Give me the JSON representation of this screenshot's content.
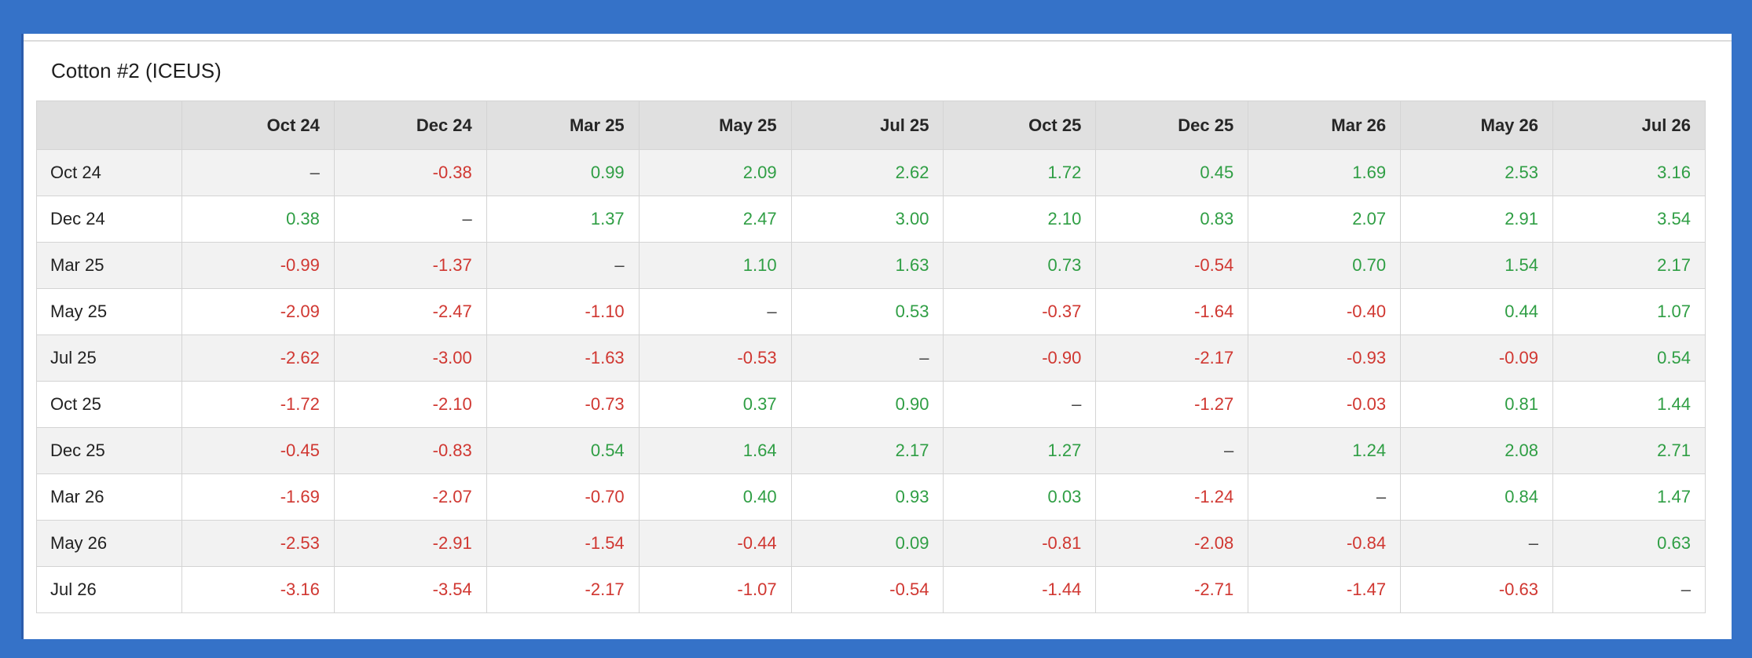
{
  "colors": {
    "frame_blue": "#3572c8",
    "panel_edge_blue": "#2b5cab",
    "divider_gray": "#dcdcdc",
    "header_bg": "#e0e0e0",
    "alt_row_bg": "#f2f2f2",
    "grid_line": "#d4d4d4",
    "positive_green": "#2f9e44",
    "negative_red": "#d03731",
    "dash_gray": "#444444",
    "text_dark": "#222222"
  },
  "chart_data": {
    "type": "table",
    "title": "Cotton #2 (ICEUS)",
    "corner_label": "",
    "columns": [
      "Oct 24",
      "Dec 24",
      "Mar 25",
      "May 25",
      "Jul 25",
      "Oct 25",
      "Dec 25",
      "Mar 26",
      "May 26",
      "Jul 26"
    ],
    "rows": [
      {
        "label": "Oct 24",
        "values": [
          "–",
          "-0.38",
          "0.99",
          "2.09",
          "2.62",
          "1.72",
          "0.45",
          "1.69",
          "2.53",
          "3.16"
        ]
      },
      {
        "label": "Dec 24",
        "values": [
          "0.38",
          "–",
          "1.37",
          "2.47",
          "3.00",
          "2.10",
          "0.83",
          "2.07",
          "2.91",
          "3.54"
        ]
      },
      {
        "label": "Mar 25",
        "values": [
          "-0.99",
          "-1.37",
          "–",
          "1.10",
          "1.63",
          "0.73",
          "-0.54",
          "0.70",
          "1.54",
          "2.17"
        ]
      },
      {
        "label": "May 25",
        "values": [
          "-2.09",
          "-2.47",
          "-1.10",
          "–",
          "0.53",
          "-0.37",
          "-1.64",
          "-0.40",
          "0.44",
          "1.07"
        ]
      },
      {
        "label": "Jul 25",
        "values": [
          "-2.62",
          "-3.00",
          "-1.63",
          "-0.53",
          "–",
          "-0.90",
          "-2.17",
          "-0.93",
          "-0.09",
          "0.54"
        ]
      },
      {
        "label": "Oct 25",
        "values": [
          "-1.72",
          "-2.10",
          "-0.73",
          "0.37",
          "0.90",
          "–",
          "-1.27",
          "-0.03",
          "0.81",
          "1.44"
        ]
      },
      {
        "label": "Dec 25",
        "values": [
          "-0.45",
          "-0.83",
          "0.54",
          "1.64",
          "2.17",
          "1.27",
          "–",
          "1.24",
          "2.08",
          "2.71"
        ]
      },
      {
        "label": "Mar 26",
        "values": [
          "-1.69",
          "-2.07",
          "-0.70",
          "0.40",
          "0.93",
          "0.03",
          "-1.24",
          "–",
          "0.84",
          "1.47"
        ]
      },
      {
        "label": "May 26",
        "values": [
          "-2.53",
          "-2.91",
          "-1.54",
          "-0.44",
          "0.09",
          "-0.81",
          "-2.08",
          "-0.84",
          "–",
          "0.63"
        ]
      },
      {
        "label": "Jul 26",
        "values": [
          "-3.16",
          "-3.54",
          "-2.17",
          "-1.07",
          "-0.54",
          "-1.44",
          "-2.71",
          "-1.47",
          "-0.63",
          "–"
        ]
      }
    ]
  }
}
